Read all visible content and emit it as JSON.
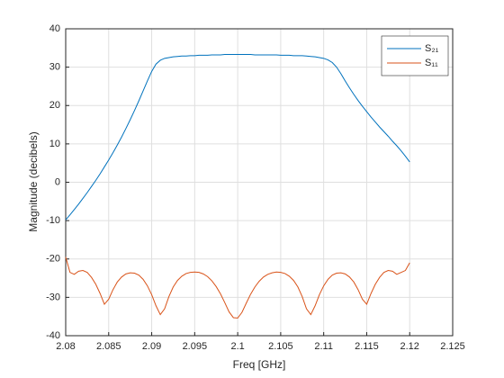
{
  "chart_data": {
    "type": "line",
    "xlabel": "Freq [GHz]",
    "ylabel": "Magnitude (decibels)",
    "x": [
      2.08,
      2.0805,
      2.081,
      2.0815,
      2.082,
      2.0825,
      2.083,
      2.0835,
      2.084,
      2.0845,
      2.085,
      2.0855,
      2.086,
      2.0865,
      2.087,
      2.0875,
      2.088,
      2.0885,
      2.089,
      2.0895,
      2.09,
      2.0905,
      2.091,
      2.0915,
      2.092,
      2.0925,
      2.093,
      2.0935,
      2.094,
      2.0945,
      2.095,
      2.0955,
      2.096,
      2.0965,
      2.097,
      2.0975,
      2.098,
      2.0985,
      2.099,
      2.0995,
      2.1,
      2.1005,
      2.101,
      2.1015,
      2.102,
      2.1025,
      2.103,
      2.1035,
      2.104,
      2.1045,
      2.105,
      2.1055,
      2.106,
      2.1065,
      2.107,
      2.1075,
      2.108,
      2.1085,
      2.109,
      2.1095,
      2.11,
      2.1105,
      2.111,
      2.1115,
      2.112,
      2.1125,
      2.113,
      2.1135,
      2.114,
      2.1145,
      2.115,
      2.1155,
      2.116,
      2.1165,
      2.117,
      2.1175,
      2.118,
      2.1185,
      2.119,
      2.1195,
      2.12
    ],
    "series": [
      {
        "name": "S₂₁",
        "color": "#0072bd",
        "values": [
          -9.8,
          -8.5,
          -7.1,
          -5.7,
          -4.2,
          -2.7,
          -1.1,
          0.5,
          2.2,
          4,
          5.8,
          7.7,
          9.7,
          11.8,
          14,
          16.3,
          18.7,
          21.2,
          23.8,
          26.4,
          28.9,
          30.8,
          31.8,
          32.3,
          32.5,
          32.7,
          32.8,
          32.9,
          32.9,
          33,
          33,
          33.1,
          33.1,
          33.1,
          33.2,
          33.2,
          33.2,
          33.3,
          33.3,
          33.3,
          33.3,
          33.3,
          33.3,
          33.3,
          33.2,
          33.2,
          33.2,
          33.2,
          33.2,
          33.2,
          33.1,
          33.1,
          33.1,
          33,
          33,
          33,
          32.9,
          32.8,
          32.7,
          32.5,
          32.3,
          31.9,
          31.2,
          30,
          28.3,
          26.4,
          24.6,
          22.9,
          21.3,
          19.8,
          18.4,
          17,
          15.7,
          14.4,
          13.2,
          12,
          10.7,
          9.5,
          8.2,
          6.8,
          5.3
        ]
      },
      {
        "name": "S₁₁",
        "color": "#d95319",
        "values": [
          -19.5,
          -23.5,
          -24,
          -23.2,
          -23,
          -23.5,
          -24.8,
          -26.6,
          -29,
          -31.8,
          -30.5,
          -28,
          -26,
          -24.7,
          -23.9,
          -23.6,
          -23.7,
          -24.2,
          -25.3,
          -27,
          -29.3,
          -32.2,
          -34.5,
          -33,
          -29.8,
          -27.3,
          -25.6,
          -24.5,
          -23.8,
          -23.5,
          -23.4,
          -23.5,
          -23.9,
          -24.6,
          -25.7,
          -27.2,
          -29.1,
          -31.4,
          -33.8,
          -35.3,
          -35.4,
          -33.9,
          -31.5,
          -29.2,
          -27.3,
          -25.8,
          -24.7,
          -24,
          -23.6,
          -23.4,
          -23.5,
          -23.8,
          -24.5,
          -25.6,
          -27.3,
          -29.8,
          -33,
          -34.5,
          -32.2,
          -29.3,
          -27,
          -25.3,
          -24.2,
          -23.7,
          -23.6,
          -23.9,
          -24.7,
          -26,
          -28,
          -30.5,
          -31.8,
          -29,
          -26.6,
          -24.8,
          -23.5,
          -23,
          -23.2,
          -24,
          -23.5,
          -23,
          -21
        ]
      }
    ],
    "xlim": [
      2.08,
      2.125
    ],
    "xticks": [
      2.08,
      2.085,
      2.09,
      2.095,
      2.1,
      2.105,
      2.11,
      2.115,
      2.12,
      2.125
    ],
    "ylim": [
      -40,
      40
    ],
    "yticks": [
      -40,
      -30,
      -20,
      -10,
      0,
      10,
      20,
      30,
      40
    ],
    "grid": true,
    "legend": "top-right"
  }
}
